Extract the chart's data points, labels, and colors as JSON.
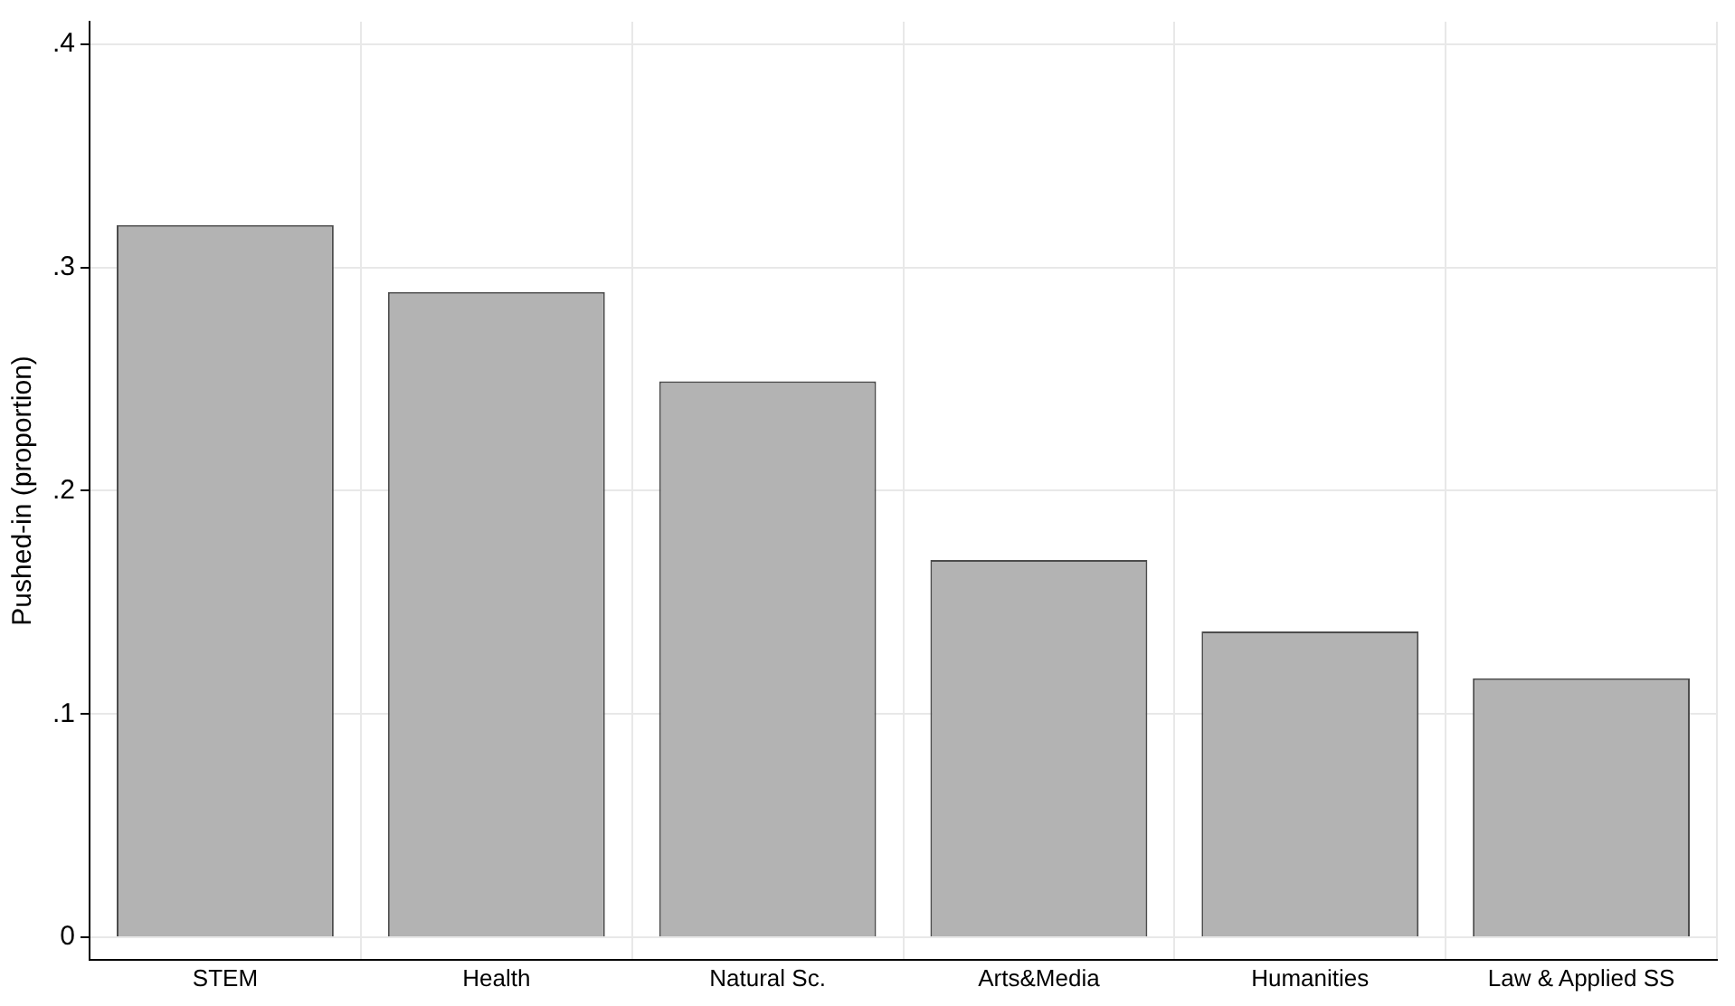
{
  "chart_data": {
    "type": "bar",
    "ylabel": "Pushed-in (proportion)",
    "categories": [
      "STEM",
      "Health",
      "Natural Sc.",
      "Arts&Media",
      "Humanities",
      "Law & Applied SS"
    ],
    "values": [
      0.319,
      0.289,
      0.249,
      0.169,
      0.137,
      0.116
    ],
    "color": "#b3b3b3",
    "ylim": [
      -0.01,
      0.41
    ],
    "yticks": [
      {
        "value": 0,
        "label": "0"
      },
      {
        "value": 0.1,
        "label": ".1"
      },
      {
        "value": 0.2,
        "label": ".2"
      },
      {
        "value": 0.3,
        "label": ".3"
      },
      {
        "value": 0.4,
        "label": ".4"
      }
    ],
    "grid": true
  }
}
